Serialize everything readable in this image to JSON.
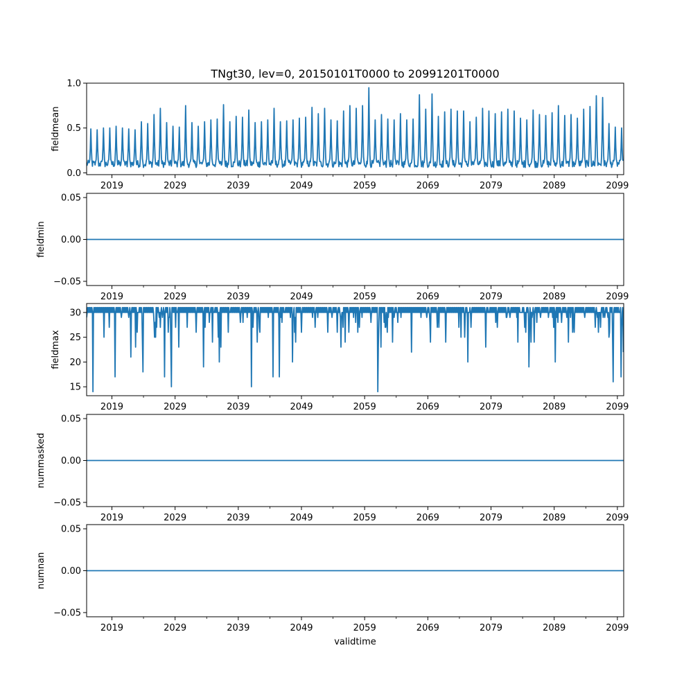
{
  "chart_data": {
    "type": "line",
    "title": "TNgt30, lev=0, 20150101T0000 to 20991201T0000",
    "xlabel": "validtime",
    "line_color": "#1f77b4",
    "x_range": [
      2015.0,
      2100.0
    ],
    "x_ticks": [
      2019,
      2029,
      2039,
      2049,
      2059,
      2069,
      2079,
      2089,
      2099
    ],
    "x_tick_labels": [
      "2019",
      "2029",
      "2039",
      "2049",
      "2059",
      "2069",
      "2079",
      "2089",
      "2099"
    ],
    "panels": [
      {
        "ylabel": "fieldmean",
        "ylim": [
          -0.02,
          1.0
        ],
        "y_ticks": [
          0.0,
          0.5,
          1.0
        ],
        "y_tick_labels": [
          "0.0",
          "0.5",
          "1.0"
        ],
        "series": {
          "kind": "seasonal",
          "start_year": 2015,
          "base": 0.1,
          "yearly_peaks": [
            0.49,
            0.48,
            0.5,
            0.5,
            0.52,
            0.5,
            0.49,
            0.48,
            0.57,
            0.55,
            0.65,
            0.72,
            0.56,
            0.52,
            0.51,
            0.75,
            0.56,
            0.52,
            0.57,
            0.59,
            0.6,
            0.76,
            0.57,
            0.63,
            0.62,
            0.7,
            0.56,
            0.57,
            0.59,
            0.72,
            0.57,
            0.58,
            0.59,
            0.61,
            0.62,
            0.73,
            0.66,
            0.72,
            0.59,
            0.58,
            0.69,
            0.75,
            0.72,
            0.75,
            0.95,
            0.59,
            0.65,
            0.6,
            0.59,
            0.66,
            0.59,
            0.6,
            0.87,
            0.71,
            0.88,
            0.63,
            0.68,
            0.71,
            0.69,
            0.69,
            0.57,
            0.62,
            0.72,
            0.69,
            0.66,
            0.68,
            0.71,
            0.69,
            0.61,
            0.59,
            0.7,
            0.65,
            0.64,
            0.67,
            0.75,
            0.64,
            0.65,
            0.61,
            0.71,
            0.74,
            0.86,
            0.84,
            0.55,
            0.51,
            0.5
          ],
          "peak_month": 8
        }
      },
      {
        "ylabel": "fieldmin",
        "ylim": [
          -0.055,
          0.055
        ],
        "y_ticks": [
          -0.05,
          0.0,
          0.05
        ],
        "y_tick_labels": [
          "−0.05",
          "0.00",
          "0.05"
        ],
        "series": {
          "kind": "constant",
          "value": 0.0
        }
      },
      {
        "ylabel": "fieldmax",
        "ylim": [
          13.2,
          31.8
        ],
        "y_ticks": [
          15,
          20,
          25,
          30
        ],
        "y_tick_labels": [
          "15",
          "20",
          "25",
          "30"
        ],
        "series": {
          "kind": "sawtooth",
          "start_year": 2015,
          "high": 31,
          "plateau": 30,
          "notable_dips": [
            [
              2016.0,
              14
            ],
            [
              2019.5,
              17
            ],
            [
              2022.0,
              21
            ],
            [
              2023.9,
              18
            ],
            [
              2027.3,
              17
            ],
            [
              2028.4,
              15
            ],
            [
              2033.5,
              19
            ],
            [
              2036.0,
              20
            ],
            [
              2041.1,
              15
            ],
            [
              2044.5,
              17
            ],
            [
              2045.5,
              17
            ],
            [
              2047.6,
              20
            ],
            [
              2061.1,
              14
            ],
            [
              2066.4,
              22
            ],
            [
              2075.3,
              20
            ],
            [
              2085.0,
              19
            ],
            [
              2089.2,
              20
            ],
            [
              2098.3,
              16
            ],
            [
              2099.6,
              17
            ]
          ]
        }
      },
      {
        "ylabel": "nummasked",
        "ylim": [
          -0.055,
          0.055
        ],
        "y_ticks": [
          -0.05,
          0.0,
          0.05
        ],
        "y_tick_labels": [
          "−0.05",
          "0.00",
          "0.05"
        ],
        "series": {
          "kind": "constant",
          "value": 0.0
        }
      },
      {
        "ylabel": "numnan",
        "ylim": [
          -0.055,
          0.055
        ],
        "y_ticks": [
          -0.05,
          0.0,
          0.05
        ],
        "y_tick_labels": [
          "−0.05",
          "0.00",
          "0.05"
        ],
        "series": {
          "kind": "constant",
          "value": 0.0
        }
      }
    ]
  }
}
